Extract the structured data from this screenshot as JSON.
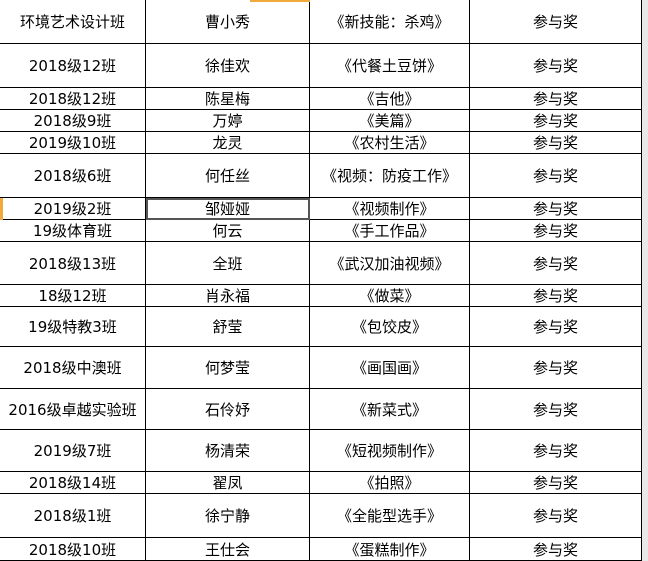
{
  "table": {
    "rows": [
      [
        "环境艺术设计班",
        "曹小秀",
        "《新技能：杀鸡》",
        "参与奖"
      ],
      [
        "2018级12班",
        "徐佳欢",
        "《代餐土豆饼》",
        "参与奖"
      ],
      [
        "2018级12班",
        "陈星梅",
        "《吉他》",
        "参与奖"
      ],
      [
        "2018级9班",
        "万婷",
        "《美篇》",
        "参与奖"
      ],
      [
        "2019级10班",
        "龙灵",
        "《农村生活》",
        "参与奖"
      ],
      [
        "2018级6班",
        "何任丝",
        "《视频：防疫工作》",
        "参与奖"
      ],
      [
        "2019级2班",
        "邹娅娅",
        "《视频制作》",
        "参与奖"
      ],
      [
        "19级体育班",
        "何云",
        "《手工作品》",
        "参与奖"
      ],
      [
        "2018级13班",
        "全班",
        "《武汉加油视频》",
        "参与奖"
      ],
      [
        "18级12班",
        "肖永福",
        "《做菜》",
        "参与奖"
      ],
      [
        "19级特教3班",
        "舒莹",
        "《包饺皮》",
        "参与奖"
      ],
      [
        "2018级中澳班",
        "何梦莹",
        "《画国画》",
        "参与奖"
      ],
      [
        "2016级卓越实验班",
        "石伶妤",
        "《新菜式》",
        "参与奖"
      ],
      [
        "2019级7班",
        "杨清荣",
        "《短视频制作》",
        "参与奖"
      ],
      [
        "2018级14班",
        "翟凤",
        "《拍照》",
        "参与奖"
      ],
      [
        "2018级1班",
        "徐宁静",
        "《全能型选手》",
        "参与奖"
      ],
      [
        "2018级10班",
        "王仕会",
        "《蛋糕制作》",
        "参与奖"
      ]
    ]
  }
}
